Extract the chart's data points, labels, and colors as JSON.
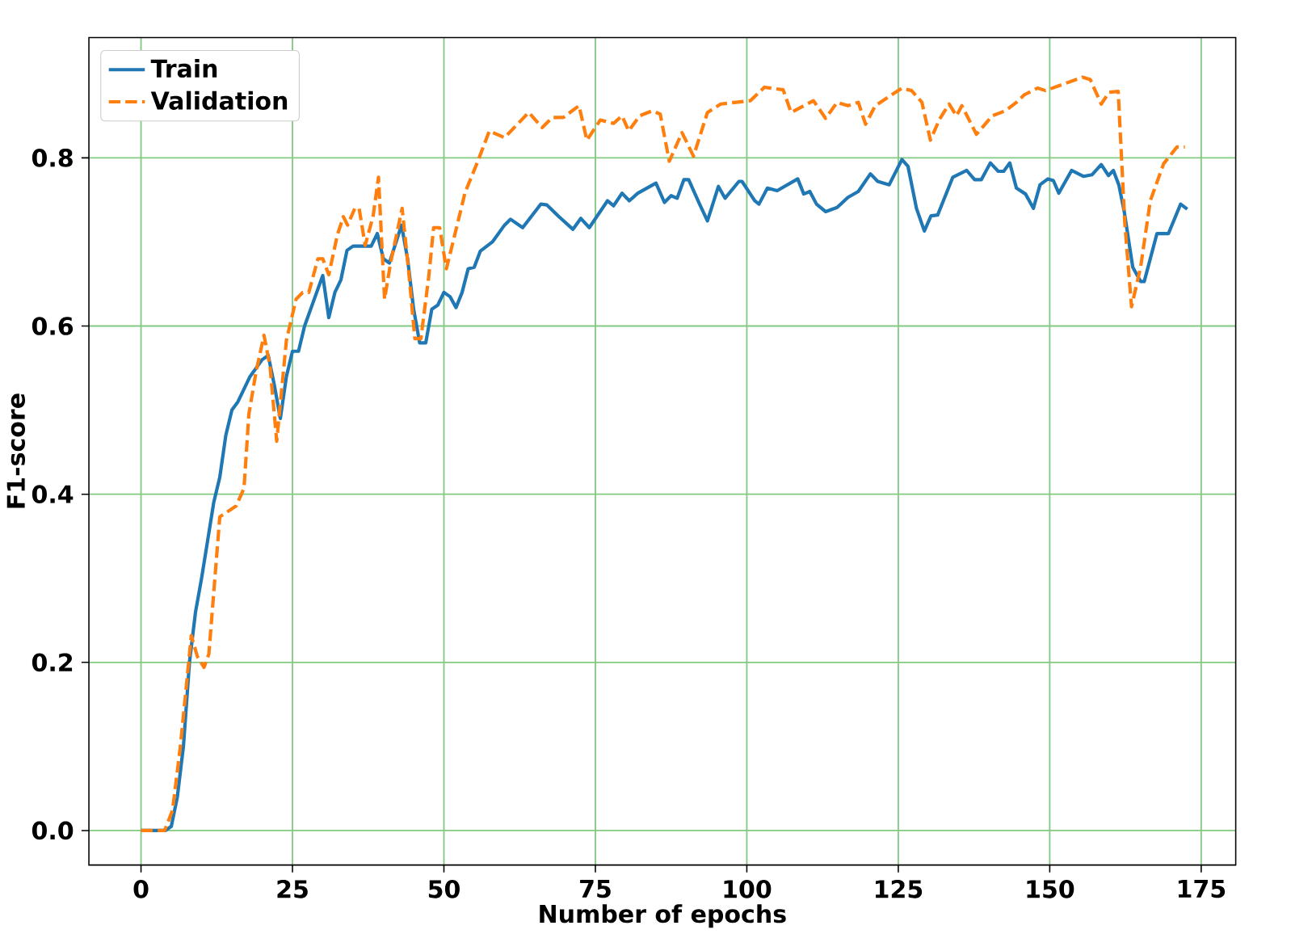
{
  "chart_data": {
    "type": "line",
    "xlabel": "Number of epochs",
    "ylabel": "F1-score",
    "xlim": [
      -8.6,
      180.7
    ],
    "ylim": [
      -0.041,
      0.943
    ],
    "xticks": [
      0,
      25,
      50,
      75,
      100,
      125,
      150,
      175
    ],
    "yticks": [
      {
        "value": 0,
        "label": "0.0"
      },
      {
        "value": 0.2,
        "label": "0.2"
      },
      {
        "value": 0.4,
        "label": "0.4"
      },
      {
        "value": 0.6,
        "label": "0.6"
      },
      {
        "value": 0.8,
        "label": "0.8"
      }
    ],
    "grid": true,
    "legend": "top left",
    "marker": "none",
    "series": [
      {
        "name": "Train",
        "color": "#1f77b4",
        "line_style": "solid",
        "x": [
          0,
          4,
          5,
          6,
          7,
          8,
          9,
          10,
          12,
          13,
          14,
          15,
          16,
          18,
          20,
          21,
          22,
          23,
          24,
          25,
          26,
          27,
          29,
          30,
          31,
          32,
          33,
          34,
          35,
          37,
          38,
          39,
          40,
          41,
          43,
          44,
          45,
          46,
          47,
          48,
          49,
          50,
          51,
          52,
          53,
          54,
          55,
          56,
          58,
          60,
          61,
          63,
          66,
          67,
          69,
          71.3,
          72.6,
          74,
          77,
          78,
          79.4,
          80.6,
          82,
          85,
          86.4,
          87.5,
          88.5,
          89.6,
          90.4,
          92.2,
          93.5,
          95.3,
          96.4,
          98.7,
          99.2,
          101.3,
          102,
          103.4,
          105,
          108.4,
          109.4,
          110.4,
          111.5,
          113,
          114.9,
          116.7,
          118.4,
          120.4,
          121.6,
          123.5,
          125.6,
          126.6,
          128,
          129.3,
          130.4,
          131.5,
          134,
          136.3,
          137.6,
          138.7,
          140.2,
          141.5,
          142.4,
          143.4,
          144.5,
          146,
          147.3,
          148.4,
          149.7,
          150.6,
          151.5,
          153.6,
          155.6,
          157,
          158.5,
          159.7,
          160.5,
          161.4,
          162.3,
          163.7,
          165,
          165.6,
          167.7,
          169.6,
          171.6,
          172.7
        ],
        "values": [
          0,
          0,
          0.005,
          0.04,
          0.1,
          0.2,
          0.26,
          0.3,
          0.39,
          0.42,
          0.47,
          0.5,
          0.51,
          0.54,
          0.56,
          0.565,
          0.53,
          0.49,
          0.54,
          0.57,
          0.57,
          0.6,
          0.64,
          0.66,
          0.61,
          0.64,
          0.655,
          0.69,
          0.695,
          0.695,
          0.695,
          0.71,
          0.68,
          0.675,
          0.72,
          0.68,
          0.62,
          0.58,
          0.58,
          0.62,
          0.625,
          0.64,
          0.635,
          0.622,
          0.64,
          0.668,
          0.67,
          0.689,
          0.7,
          0.72,
          0.727,
          0.717,
          0.745,
          0.744,
          0.73,
          0.715,
          0.728,
          0.717,
          0.749,
          0.743,
          0.758,
          0.749,
          0.758,
          0.77,
          0.747,
          0.755,
          0.752,
          0.774,
          0.774,
          0.745,
          0.725,
          0.766,
          0.752,
          0.772,
          0.772,
          0.749,
          0.745,
          0.764,
          0.761,
          0.775,
          0.757,
          0.76,
          0.745,
          0.736,
          0.741,
          0.753,
          0.76,
          0.781,
          0.772,
          0.768,
          0.798,
          0.79,
          0.74,
          0.713,
          0.731,
          0.732,
          0.777,
          0.785,
          0.774,
          0.774,
          0.794,
          0.784,
          0.784,
          0.794,
          0.764,
          0.757,
          0.74,
          0.768,
          0.775,
          0.773,
          0.758,
          0.785,
          0.778,
          0.78,
          0.792,
          0.779,
          0.785,
          0.768,
          0.736,
          0.67,
          0.653,
          0.653,
          0.71,
          0.71,
          0.745,
          0.739
        ]
      },
      {
        "name": "Validation",
        "color": "#ff7f0e",
        "line_style": "dashed",
        "x": [
          0,
          3.9,
          5.2,
          6.5,
          8.3,
          9.3,
          10.4,
          11.2,
          13,
          15.7,
          17,
          17.8,
          19,
          20.3,
          21.3,
          22.4,
          24,
          25.6,
          26.7,
          27.7,
          29.2,
          30,
          31,
          32.4,
          33.4,
          34.1,
          35.3,
          36,
          37,
          38.3,
          39.2,
          40.2,
          41.2,
          43.1,
          44.2,
          45.2,
          46.2,
          47.5,
          48.3,
          49.3,
          50.4,
          51.5,
          53.5,
          55.6,
          57.5,
          60,
          64,
          66.2,
          67.9,
          69.7,
          72.3,
          73.6,
          75.8,
          78,
          79.4,
          80.5,
          82.3,
          84.4,
          85.7,
          87.2,
          89.3,
          91.2,
          93.5,
          95.7,
          100.6,
          102.9,
          106,
          107.3,
          111,
          113,
          114.9,
          116.7,
          118.4,
          119.6,
          121.2,
          125.6,
          127.2,
          128.9,
          130.3,
          131.8,
          133.4,
          134.6,
          135.5,
          137.9,
          140.5,
          142.7,
          144.5,
          145.8,
          148,
          149.3,
          152,
          155.4,
          156.7,
          158.5,
          159.8,
          161.3,
          162.4,
          163.5,
          165,
          166.6,
          168.8,
          171,
          172.3
        ],
        "values": [
          0,
          0,
          0.024,
          0.1,
          0.232,
          0.207,
          0.194,
          0.21,
          0.373,
          0.386,
          0.407,
          0.495,
          0.546,
          0.589,
          0.552,
          0.463,
          0.583,
          0.632,
          0.64,
          0.64,
          0.68,
          0.68,
          0.661,
          0.708,
          0.73,
          0.72,
          0.74,
          0.74,
          0.696,
          0.73,
          0.777,
          0.632,
          0.675,
          0.74,
          0.664,
          0.585,
          0.585,
          0.659,
          0.717,
          0.717,
          0.668,
          0.7,
          0.759,
          0.796,
          0.832,
          0.824,
          0.854,
          0.836,
          0.848,
          0.848,
          0.862,
          0.821,
          0.845,
          0.841,
          0.85,
          0.832,
          0.85,
          0.856,
          0.852,
          0.796,
          0.83,
          0.802,
          0.854,
          0.864,
          0.868,
          0.884,
          0.881,
          0.854,
          0.868,
          0.847,
          0.866,
          0.862,
          0.866,
          0.84,
          0.862,
          0.883,
          0.88,
          0.866,
          0.821,
          0.846,
          0.864,
          0.85,
          0.862,
          0.828,
          0.85,
          0.856,
          0.866,
          0.875,
          0.883,
          0.88,
          0.887,
          0.896,
          0.893,
          0.864,
          0.878,
          0.879,
          0.721,
          0.623,
          0.67,
          0.749,
          0.793,
          0.813,
          0.813
        ]
      }
    ]
  }
}
